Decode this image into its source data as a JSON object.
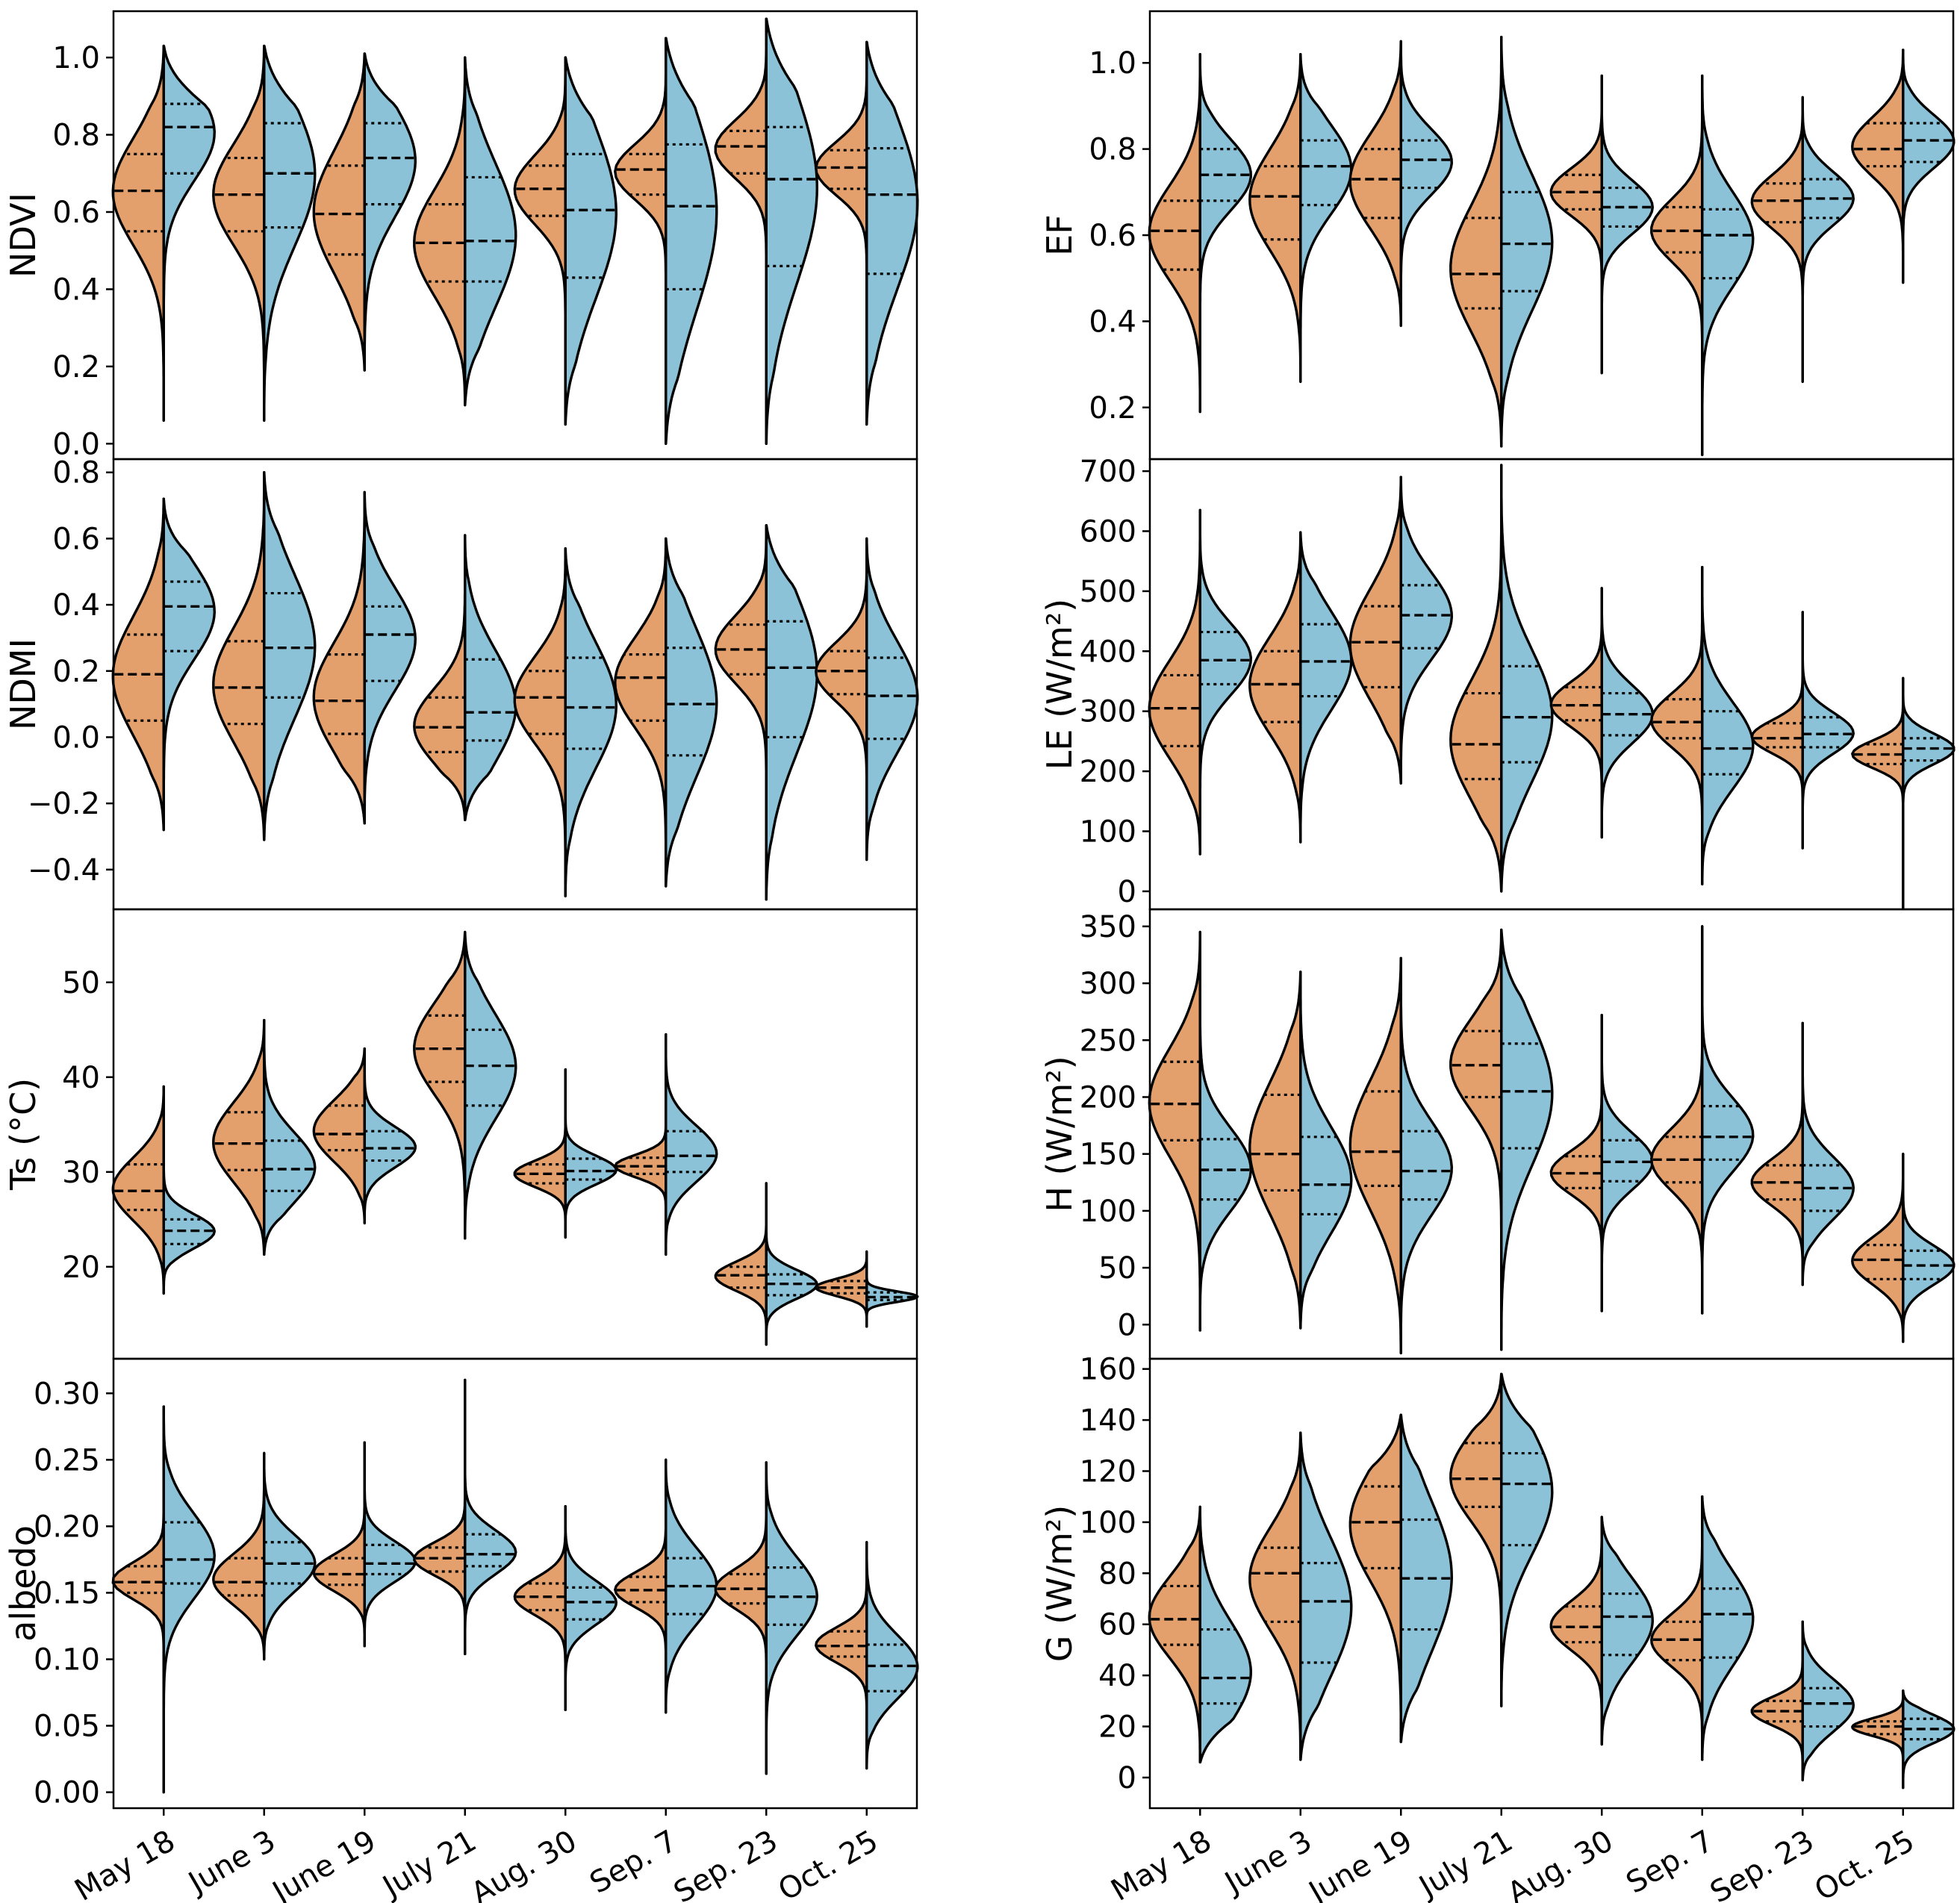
{
  "colors": {
    "left": "#E3A06C",
    "right": "#8CC2D7",
    "line": "#000000"
  },
  "chart_data": [
    {
      "type": "violin",
      "id": "ndvi",
      "ylabel": "NDVI",
      "ylim": [
        -0.04,
        1.12
      ],
      "yticks": [
        "0.0",
        "0.2",
        "0.4",
        "0.6",
        "0.8",
        "1.0"
      ],
      "ytick_values": [
        0,
        0.2,
        0.4,
        0.6,
        0.8,
        1.0
      ],
      "categories": [
        "May 18",
        "June 3",
        "June 19",
        "July 21",
        "Aug. 30",
        "Sep. 7",
        "Sep. 23",
        "Oct. 25"
      ],
      "left": [
        [
          0.06,
          0.55,
          0.655,
          0.75,
          1.03
        ],
        [
          0.06,
          0.55,
          0.645,
          0.74,
          1.03
        ],
        [
          0.19,
          0.49,
          0.595,
          0.72,
          1.01
        ],
        [
          0.1,
          0.42,
          0.52,
          0.62,
          1.0
        ],
        [
          0.05,
          0.59,
          0.66,
          0.72,
          1.0
        ],
        [
          0.0,
          0.645,
          0.71,
          0.75,
          1.05
        ],
        [
          0.0,
          0.7,
          0.77,
          0.81,
          1.1
        ],
        [
          0.05,
          0.66,
          0.715,
          0.76,
          1.04
        ]
      ],
      "right": [
        [
          0.06,
          0.7,
          0.82,
          0.88,
          1.03
        ],
        [
          0.06,
          0.56,
          0.7,
          0.83,
          1.03
        ],
        [
          0.19,
          0.62,
          0.74,
          0.83,
          1.01
        ],
        [
          0.1,
          0.42,
          0.525,
          0.69,
          1.0
        ],
        [
          0.05,
          0.43,
          0.605,
          0.75,
          1.0
        ],
        [
          0.0,
          0.4,
          0.615,
          0.775,
          1.05
        ],
        [
          0.0,
          0.46,
          0.685,
          0.82,
          1.1
        ],
        [
          0.05,
          0.44,
          0.645,
          0.765,
          1.04
        ]
      ]
    },
    {
      "type": "violin",
      "id": "ndmi",
      "ylabel": "NDMI",
      "ylim": [
        -0.52,
        0.84
      ],
      "yticks": [
        "−0.4",
        "−0.2",
        "0.0",
        "0.2",
        "0.4",
        "0.6",
        "0.8"
      ],
      "ytick_values": [
        -0.4,
        -0.2,
        0,
        0.2,
        0.4,
        0.6,
        0.8
      ],
      "categories": [
        "May 18",
        "June 3",
        "June 19",
        "July 21",
        "Aug. 30",
        "Sep. 7",
        "Sep. 23",
        "Oct. 25"
      ],
      "left": [
        [
          -0.28,
          0.05,
          0.19,
          0.31,
          0.72
        ],
        [
          -0.31,
          0.04,
          0.15,
          0.29,
          0.8
        ],
        [
          -0.26,
          0.01,
          0.11,
          0.25,
          0.74
        ],
        [
          -0.25,
          -0.045,
          0.03,
          0.12,
          0.61
        ],
        [
          -0.48,
          0.01,
          0.12,
          0.2,
          0.57
        ],
        [
          -0.45,
          0.05,
          0.18,
          0.25,
          0.6
        ],
        [
          -0.49,
          0.19,
          0.265,
          0.34,
          0.64
        ],
        [
          -0.37,
          0.13,
          0.2,
          0.26,
          0.6
        ]
      ],
      "right": [
        [
          -0.28,
          0.26,
          0.395,
          0.47,
          0.72
        ],
        [
          -0.31,
          0.12,
          0.27,
          0.435,
          0.8
        ],
        [
          -0.26,
          0.17,
          0.31,
          0.395,
          0.74
        ],
        [
          -0.25,
          -0.01,
          0.075,
          0.235,
          0.61
        ],
        [
          -0.48,
          -0.035,
          0.09,
          0.24,
          0.57
        ],
        [
          -0.45,
          -0.055,
          0.1,
          0.27,
          0.6
        ],
        [
          -0.49,
          0.0,
          0.21,
          0.35,
          0.64
        ],
        [
          -0.37,
          -0.005,
          0.125,
          0.24,
          0.6
        ]
      ]
    },
    {
      "type": "violin",
      "id": "ts",
      "ylabel": "Ts (°C)",
      "ylim": [
        10.3,
        57.7
      ],
      "yticks": [
        "20",
        "30",
        "40",
        "50"
      ],
      "ytick_values": [
        20,
        30,
        40,
        50
      ],
      "categories": [
        "May 18",
        "June 3",
        "June 19",
        "July 21",
        "Aug. 30",
        "Sep. 7",
        "Sep. 23",
        "Oct. 25"
      ],
      "left": [
        [
          17.2,
          26.0,
          28.0,
          30.8,
          39.0
        ],
        [
          21.3,
          30.2,
          33.0,
          36.3,
          46.0
        ],
        [
          24.6,
          32.3,
          34.0,
          37.0,
          43.0
        ],
        [
          23.0,
          39.5,
          43.0,
          46.5,
          55.3
        ],
        [
          23.1,
          28.8,
          29.8,
          30.8,
          40.8
        ],
        [
          21.3,
          29.8,
          30.6,
          31.5,
          44.5
        ],
        [
          11.8,
          17.8,
          19.1,
          20.0,
          28.8
        ],
        [
          13.7,
          17.2,
          17.8,
          18.5,
          21.6
        ]
      ],
      "right": [
        [
          17.2,
          22.4,
          23.8,
          25.0,
          39.0
        ],
        [
          21.3,
          28.0,
          30.3,
          33.3,
          46.0
        ],
        [
          24.6,
          31.2,
          32.5,
          34.3,
          43.0
        ],
        [
          23.0,
          37.0,
          41.2,
          45.0,
          55.3
        ],
        [
          23.1,
          29.2,
          30.1,
          31.4,
          40.8
        ],
        [
          21.3,
          30.0,
          31.7,
          34.3,
          44.5
        ],
        [
          11.8,
          17.0,
          18.2,
          19.2,
          28.8
        ],
        [
          13.7,
          16.5,
          16.8,
          17.3,
          21.6
        ]
      ]
    },
    {
      "type": "violin",
      "id": "albedo",
      "ylabel": "albedo",
      "ylim": [
        -0.012,
        0.326
      ],
      "yticks": [
        "0.00",
        "0.05",
        "0.10",
        "0.15",
        "0.20",
        "0.25",
        "0.30"
      ],
      "ytick_values": [
        0,
        0.05,
        0.1,
        0.15,
        0.2,
        0.25,
        0.3
      ],
      "categories": [
        "May 18",
        "June 3",
        "June 19",
        "July 21",
        "Aug. 30",
        "Sep. 7",
        "Sep. 23",
        "Oct. 25"
      ],
      "left": [
        [
          0.0,
          0.15,
          0.158,
          0.17,
          0.29
        ],
        [
          0.1,
          0.148,
          0.158,
          0.176,
          0.255
        ],
        [
          0.11,
          0.156,
          0.164,
          0.176,
          0.263
        ],
        [
          0.104,
          0.166,
          0.176,
          0.184,
          0.31
        ],
        [
          0.062,
          0.137,
          0.147,
          0.157,
          0.215
        ],
        [
          0.06,
          0.143,
          0.152,
          0.162,
          0.25
        ],
        [
          0.014,
          0.142,
          0.153,
          0.164,
          0.248
        ],
        [
          0.018,
          0.102,
          0.11,
          0.121,
          0.188
        ]
      ],
      "right": [
        [
          0.0,
          0.157,
          0.175,
          0.203,
          0.29
        ],
        [
          0.1,
          0.157,
          0.172,
          0.188,
          0.255
        ],
        [
          0.11,
          0.164,
          0.172,
          0.186,
          0.263
        ],
        [
          0.104,
          0.17,
          0.179,
          0.194,
          0.31
        ],
        [
          0.062,
          0.13,
          0.143,
          0.154,
          0.215
        ],
        [
          0.06,
          0.134,
          0.155,
          0.176,
          0.25
        ],
        [
          0.014,
          0.126,
          0.147,
          0.169,
          0.248
        ],
        [
          0.018,
          0.076,
          0.095,
          0.111,
          0.188
        ]
      ]
    },
    {
      "type": "violin",
      "id": "ef",
      "ylabel": "EF",
      "ylim": [
        0.08,
        1.12
      ],
      "yticks": [
        "0.2",
        "0.4",
        "0.6",
        "0.8",
        "1.0"
      ],
      "ytick_values": [
        0.2,
        0.4,
        0.6,
        0.8,
        1.0
      ],
      "categories": [
        "May 18",
        "June 3",
        "June 19",
        "July 21",
        "Aug. 30",
        "Sep. 7",
        "Sep. 23",
        "Oct. 25"
      ],
      "left": [
        [
          0.19,
          0.52,
          0.61,
          0.68,
          1.02
        ],
        [
          0.26,
          0.59,
          0.69,
          0.76,
          1.02
        ],
        [
          0.39,
          0.64,
          0.73,
          0.8,
          1.05
        ],
        [
          0.11,
          0.43,
          0.51,
          0.64,
          1.06
        ],
        [
          0.28,
          0.66,
          0.7,
          0.74,
          0.97
        ],
        [
          0.09,
          0.56,
          0.61,
          0.665,
          0.97
        ],
        [
          0.26,
          0.63,
          0.68,
          0.72,
          0.92
        ],
        [
          0.49,
          0.76,
          0.8,
          0.86,
          1.03
        ]
      ],
      "right": [
        [
          0.19,
          0.68,
          0.74,
          0.8,
          1.02
        ],
        [
          0.26,
          0.67,
          0.76,
          0.82,
          1.02
        ],
        [
          0.39,
          0.71,
          0.775,
          0.82,
          1.05
        ],
        [
          0.11,
          0.47,
          0.58,
          0.7,
          1.06
        ],
        [
          0.28,
          0.62,
          0.665,
          0.71,
          0.97
        ],
        [
          0.09,
          0.5,
          0.6,
          0.66,
          0.97
        ],
        [
          0.26,
          0.64,
          0.685,
          0.73,
          0.92
        ],
        [
          0.49,
          0.77,
          0.82,
          0.86,
          1.03
        ]
      ]
    },
    {
      "type": "violin",
      "id": "le",
      "ylabel": "LE (W/m²)",
      "ylim": [
        -30,
        720
      ],
      "yticks": [
        "0",
        "100",
        "200",
        "300",
        "400",
        "500",
        "600",
        "700"
      ],
      "ytick_values": [
        0,
        100,
        200,
        300,
        400,
        500,
        600,
        700
      ],
      "categories": [
        "May 18",
        "June 3",
        "June 19",
        "July 21",
        "Aug. 30",
        "Sep. 7",
        "Sep. 23",
        "Oct. 25"
      ],
      "left": [
        [
          62,
          242,
          305,
          360,
          635
        ],
        [
          82,
          282,
          345,
          400,
          598
        ],
        [
          180,
          340,
          415,
          475,
          690
        ],
        [
          0,
          187,
          245,
          330,
          710
        ],
        [
          90,
          285,
          310,
          340,
          505
        ],
        [
          12,
          255,
          282,
          320,
          540
        ],
        [
          72,
          240,
          255,
          280,
          465
        ],
        [
          -28,
          212,
          228,
          245,
          355
        ]
      ],
      "right": [
        [
          62,
          345,
          385,
          432,
          635
        ],
        [
          82,
          325,
          383,
          445,
          598
        ],
        [
          180,
          405,
          460,
          510,
          690
        ],
        [
          0,
          215,
          290,
          375,
          710
        ],
        [
          90,
          260,
          295,
          330,
          505
        ],
        [
          12,
          195,
          238,
          300,
          540
        ],
        [
          72,
          240,
          262,
          290,
          465
        ],
        [
          -28,
          218,
          238,
          255,
          355
        ]
      ]
    },
    {
      "type": "violin",
      "id": "h",
      "ylabel": "H (W/m²)",
      "ylim": [
        -30,
        365
      ],
      "yticks": [
        "0",
        "50",
        "100",
        "150",
        "200",
        "250",
        "300",
        "350"
      ],
      "ytick_values": [
        0,
        50,
        100,
        150,
        200,
        250,
        300,
        350
      ],
      "categories": [
        "May 18",
        "June 3",
        "June 19",
        "July 21",
        "Aug. 30",
        "Sep. 7",
        "Sep. 23",
        "Oct. 25"
      ],
      "left": [
        [
          -5,
          162,
          194,
          231,
          345
        ],
        [
          -3,
          118,
          150,
          202,
          310
        ],
        [
          -25,
          122,
          152,
          205,
          322
        ],
        [
          -22,
          200,
          228,
          258,
          347
        ],
        [
          12,
          120,
          133,
          148,
          272
        ],
        [
          10,
          125,
          145,
          165,
          350
        ],
        [
          35,
          110,
          125,
          140,
          265
        ],
        [
          -15,
          40,
          57,
          70,
          150
        ]
      ],
      "right": [
        [
          -5,
          110,
          136,
          163,
          345
        ],
        [
          -3,
          97,
          123,
          165,
          310
        ],
        [
          -25,
          110,
          135,
          170,
          322
        ],
        [
          -22,
          155,
          205,
          247,
          347
        ],
        [
          12,
          126,
          143,
          162,
          272
        ],
        [
          10,
          145,
          165,
          192,
          350
        ],
        [
          35,
          100,
          120,
          140,
          265
        ],
        [
          -15,
          40,
          52,
          65,
          150
        ]
      ]
    },
    {
      "type": "violin",
      "id": "g",
      "ylabel": "G (W/m²)",
      "ylim": [
        -12,
        164
      ],
      "yticks": [
        "0",
        "20",
        "40",
        "60",
        "80",
        "100",
        "120",
        "140",
        "160"
      ],
      "ytick_values": [
        0,
        20,
        40,
        60,
        80,
        100,
        120,
        140,
        160
      ],
      "categories": [
        "May 18",
        "June 3",
        "June 19",
        "July 21",
        "Aug. 30",
        "Sep. 7",
        "Sep. 23",
        "Oct. 25"
      ],
      "left": [
        [
          6,
          52,
          62,
          75,
          106
        ],
        [
          7,
          61,
          80,
          90,
          135
        ],
        [
          14,
          82,
          100,
          114,
          142
        ],
        [
          28,
          106,
          117,
          131,
          158
        ],
        [
          13,
          53,
          59,
          67,
          102
        ],
        [
          7,
          46,
          54,
          61,
          110
        ],
        [
          -1,
          22,
          26,
          30,
          61
        ],
        [
          -4,
          17,
          20,
          22,
          34
        ]
      ],
      "right": [
        [
          6,
          29,
          39,
          58,
          106
        ],
        [
          7,
          45,
          69,
          84,
          135
        ],
        [
          14,
          58,
          78,
          101,
          142
        ],
        [
          28,
          91,
          115,
          127,
          158
        ],
        [
          13,
          48,
          63,
          72,
          102
        ],
        [
          7,
          47,
          64,
          74,
          110
        ],
        [
          -1,
          20,
          29,
          35,
          61
        ],
        [
          -4,
          15,
          19,
          23,
          34
        ]
      ]
    }
  ]
}
